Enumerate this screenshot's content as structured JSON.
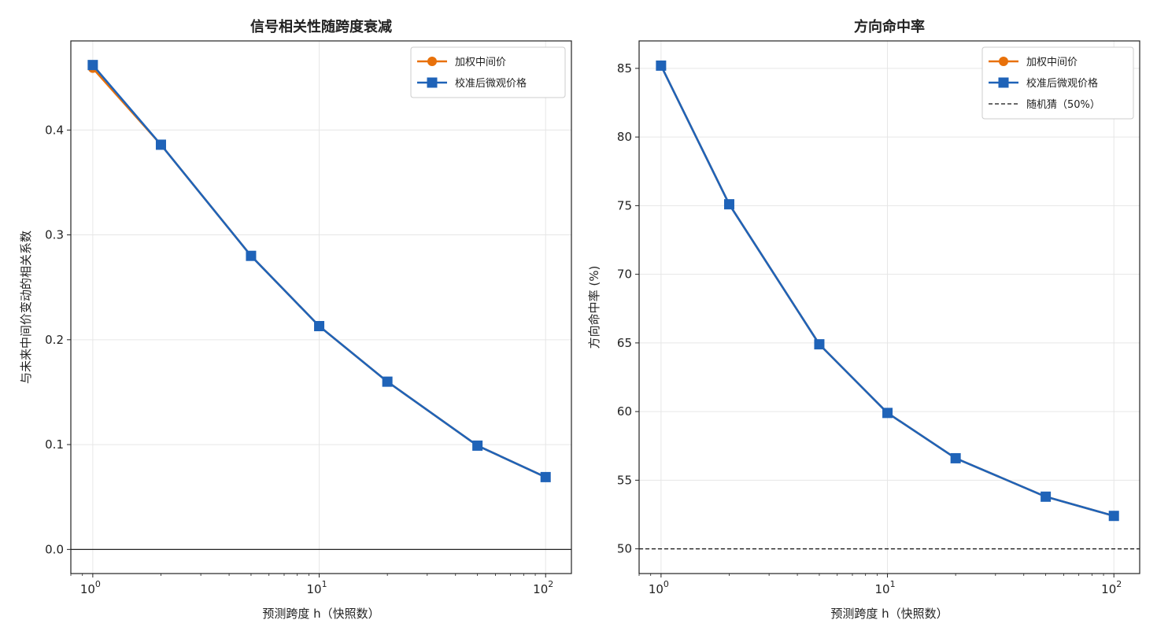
{
  "chart_data": [
    {
      "type": "line",
      "title": "信号相关性随跨度衰减",
      "xlabel": "预测跨度 h（快照数）",
      "ylabel": "与未来中间价变动的相关系数",
      "xscale": "log",
      "xlim": [
        0.8,
        130
      ],
      "ylim": [
        -0.023,
        0.485
      ],
      "xticks": [
        1,
        10,
        100
      ],
      "xtick_labels": [
        {
          "base": "10",
          "exp": "0"
        },
        {
          "base": "10",
          "exp": "1"
        },
        {
          "base": "10",
          "exp": "2"
        }
      ],
      "yticks": [
        0.0,
        0.1,
        0.2,
        0.3,
        0.4
      ],
      "ytick_labels": [
        "0.0",
        "0.1",
        "0.2",
        "0.3",
        "0.4"
      ],
      "grid": true,
      "hline": {
        "y": 0.0,
        "color": "#222222",
        "style": "solid"
      },
      "legend_position": "top-right",
      "x": [
        1,
        2,
        5,
        10,
        20,
        50,
        100
      ],
      "series": [
        {
          "name": "加权中间价",
          "color": "#e8710a",
          "marker": "circle",
          "values": [
            0.459,
            0.386,
            0.28,
            0.213,
            0.16,
            0.099,
            0.069
          ]
        },
        {
          "name": "校准后微观价格",
          "color": "#1f63b8",
          "marker": "square",
          "values": [
            0.462,
            0.386,
            0.28,
            0.213,
            0.16,
            0.099,
            0.069
          ]
        }
      ]
    },
    {
      "type": "line",
      "title": "方向命中率",
      "xlabel": "预测跨度 h（快照数）",
      "ylabel": "方向命中率 (%)",
      "xscale": "log",
      "xlim": [
        0.8,
        130
      ],
      "ylim": [
        48.2,
        87.0
      ],
      "xticks": [
        1,
        10,
        100
      ],
      "xtick_labels": [
        {
          "base": "10",
          "exp": "0"
        },
        {
          "base": "10",
          "exp": "1"
        },
        {
          "base": "10",
          "exp": "2"
        }
      ],
      "yticks": [
        50,
        55,
        60,
        65,
        70,
        75,
        80,
        85
      ],
      "ytick_labels": [
        "50",
        "55",
        "60",
        "65",
        "70",
        "75",
        "80",
        "85"
      ],
      "grid": true,
      "hline": {
        "y": 50,
        "color": "#111111",
        "style": "dashed",
        "label": "随机猜（50%）"
      },
      "legend_position": "top-right",
      "x": [
        1,
        2,
        5,
        10,
        20,
        50,
        100
      ],
      "series": [
        {
          "name": "加权中间价",
          "color": "#e8710a",
          "marker": "circle",
          "values": [
            85.2,
            75.1,
            64.9,
            59.9,
            56.6,
            53.8,
            52.4
          ]
        },
        {
          "name": "校准后微观价格",
          "color": "#1f63b8",
          "marker": "square",
          "values": [
            85.2,
            75.1,
            64.9,
            59.9,
            56.6,
            53.8,
            52.4
          ]
        }
      ]
    }
  ]
}
